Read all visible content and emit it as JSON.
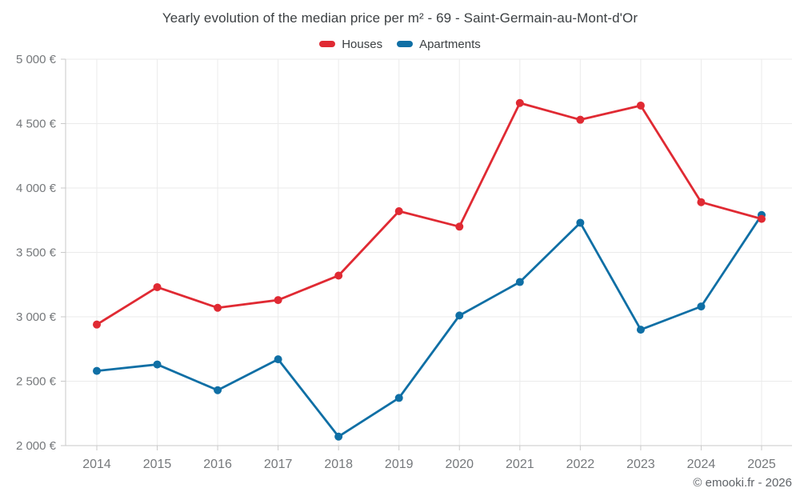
{
  "header": {
    "title": "Yearly evolution of the median price per m² - 69 - Saint-Germain-au-Mont-d'Or"
  },
  "footer": {
    "credit": "© emooki.fr - 2026"
  },
  "colors": {
    "houses": "#e02a33",
    "apartments": "#0f6fa5",
    "grid": "#ebebeb",
    "axis": "#c9c9c9",
    "tick_text": "#75787b",
    "title_text": "#3c4043",
    "credit_text": "#5f6368"
  },
  "chart_data": {
    "type": "line",
    "title": "Yearly evolution of the median price per m² - 69 - Saint-Germain-au-Mont-d'Or",
    "xlabel": "",
    "ylabel": "",
    "x": [
      2014,
      2015,
      2016,
      2017,
      2018,
      2019,
      2020,
      2021,
      2022,
      2023,
      2024,
      2025
    ],
    "x_labels": [
      "2014",
      "2015",
      "2016",
      "2017",
      "2018",
      "2019",
      "2020",
      "2021",
      "2022",
      "2023",
      "2024",
      "2025"
    ],
    "series": [
      {
        "name": "Houses",
        "color": "#e02a33",
        "values": [
          2940,
          3230,
          3070,
          3130,
          3320,
          3820,
          3700,
          4660,
          4530,
          4640,
          3890,
          3760
        ]
      },
      {
        "name": "Apartments",
        "color": "#0f6fa5",
        "values": [
          2580,
          2630,
          2430,
          2670,
          2070,
          2370,
          3010,
          3270,
          3730,
          2900,
          3080,
          3790
        ]
      }
    ],
    "ylim": [
      2000,
      5000
    ],
    "yticks": [
      {
        "value": 2000,
        "label": "2 000 €"
      },
      {
        "value": 2500,
        "label": "2 500 €"
      },
      {
        "value": 3000,
        "label": "3 000 €"
      },
      {
        "value": 3500,
        "label": "3 500 €"
      },
      {
        "value": 4000,
        "label": "4 000 €"
      },
      {
        "value": 4500,
        "label": "4 500 €"
      },
      {
        "value": 5000,
        "label": "5 000 €"
      }
    ],
    "grid": true,
    "legend_position": "top"
  }
}
